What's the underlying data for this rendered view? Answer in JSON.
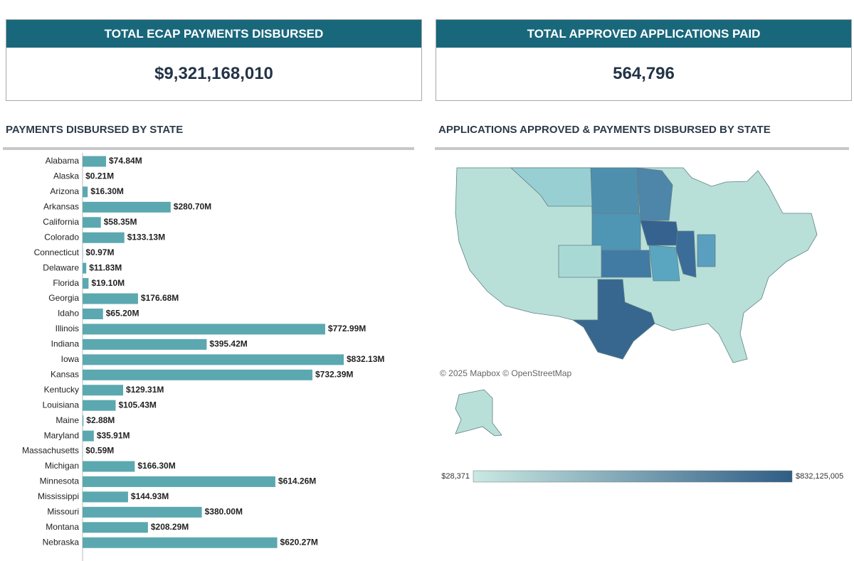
{
  "cards": [
    {
      "title": "TOTAL ECAP PAYMENTS DISBURSED",
      "value": "$9,321,168,010"
    },
    {
      "title": "TOTAL APPROVED APPLICATIONS PAID",
      "value": "564,796"
    }
  ],
  "payments_chart": {
    "type": "bar",
    "title": "PAYMENTS DISBURSED BY STATE",
    "color": "#5ba8b0",
    "categories": [
      "Alabama",
      "Alaska",
      "Arizona",
      "Arkansas",
      "California",
      "Colorado",
      "Connecticut",
      "Delaware",
      "Florida",
      "Georgia",
      "Idaho",
      "Illinois",
      "Indiana",
      "Iowa",
      "Kansas",
      "Kentucky",
      "Louisiana",
      "Maine",
      "Maryland",
      "Massachusetts",
      "Michigan",
      "Minnesota",
      "Mississippi",
      "Missouri",
      "Montana",
      "Nebraska"
    ],
    "values": [
      74.84,
      0.21,
      16.3,
      280.7,
      58.35,
      133.13,
      0.97,
      11.83,
      19.1,
      176.68,
      65.2,
      772.99,
      395.42,
      832.13,
      732.39,
      129.31,
      105.43,
      2.88,
      35.91,
      0.59,
      166.3,
      614.26,
      144.93,
      380.0,
      208.29,
      620.27
    ],
    "value_labels": [
      "$74.84M",
      "$0.21M",
      "$16.30M",
      "$280.70M",
      "$58.35M",
      "$133.13M",
      "$0.97M",
      "$11.83M",
      "$19.10M",
      "$176.68M",
      "$65.20M",
      "$772.99M",
      "$395.42M",
      "$832.13M",
      "$732.39M",
      "$129.31M",
      "$105.43M",
      "$2.88M",
      "$35.91M",
      "$0.59M",
      "$166.30M",
      "$614.26M",
      "$144.93M",
      "$380.00M",
      "$208.29M",
      "$620.27M"
    ]
  },
  "map": {
    "title": "APPLICATIONS APPROVED & PAYMENTS DISBURSED BY STATE",
    "attribution": "© 2025 Mapbox © OpenStreetMap",
    "legend": {
      "min": {
        "value": 28371,
        "label": "$28,371",
        "color": "#c9e9e2"
      },
      "max": {
        "value": 832125005,
        "label": "$832,125,005",
        "color": "#2f5d85"
      }
    }
  }
}
